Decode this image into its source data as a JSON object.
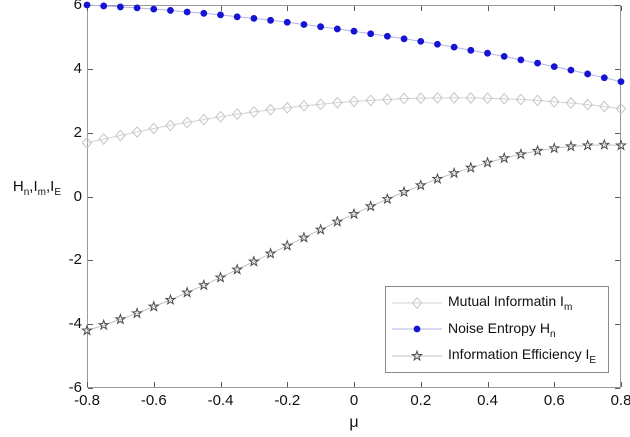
{
  "figure": {
    "background": "#ffffff"
  },
  "chart_data": {
    "type": "line",
    "title": "",
    "xlabel": "μ",
    "ylabel": "Hn,Im,IE",
    "ylabel_parts": [
      {
        "t": "H",
        "sub": "n"
      },
      {
        "t": ",I",
        "sub": "m"
      },
      {
        "t": ",I",
        "sub": "E"
      }
    ],
    "xlim": [
      -0.8,
      0.8
    ],
    "ylim": [
      -6,
      6
    ],
    "grid": false,
    "legend_position": "lower right",
    "x_tick_labels": [
      "-0.8",
      "-0.6",
      "-0.4",
      "-0.2",
      "0",
      "0.2",
      "0.4",
      "0.6",
      "0.8"
    ],
    "x_tick_values": [
      -0.8,
      -0.6,
      -0.4,
      -0.2,
      0,
      0.2,
      0.4,
      0.6,
      0.8
    ],
    "y_tick_labels": [
      "-6",
      "-4",
      "-2",
      "0",
      "2",
      "4",
      "6"
    ],
    "y_tick_values": [
      -6,
      -4,
      -2,
      0,
      2,
      4,
      6
    ],
    "colors": {
      "axis_box": "#9a9a9a",
      "tick": "#5a5a5a",
      "text": "#111111"
    },
    "x": [
      -0.8,
      -0.75,
      -0.7,
      -0.65,
      -0.6,
      -0.55,
      -0.5,
      -0.45,
      -0.4,
      -0.35,
      -0.3,
      -0.25,
      -0.2,
      -0.15,
      -0.1,
      -0.05,
      0,
      0.05,
      0.1,
      0.15,
      0.2,
      0.25,
      0.3,
      0.35,
      0.4,
      0.45,
      0.5,
      0.55,
      0.6,
      0.65,
      0.7,
      0.75,
      0.8
    ],
    "series": [
      {
        "name": "Mutual Informatin Im",
        "legend_text": "Mutual Informatin I",
        "legend_sub": "m",
        "marker": "diamond",
        "marker_color": "#c6c6c6",
        "line_color": "#d2d2d2",
        "values": [
          1.68,
          1.8,
          1.91,
          2.02,
          2.13,
          2.23,
          2.32,
          2.41,
          2.5,
          2.58,
          2.65,
          2.72,
          2.78,
          2.84,
          2.89,
          2.94,
          2.98,
          3.01,
          3.04,
          3.07,
          3.08,
          3.09,
          3.09,
          3.09,
          3.08,
          3.06,
          3.04,
          3.01,
          2.97,
          2.93,
          2.88,
          2.82,
          2.75
        ]
      },
      {
        "name": "Noise Entropy Hn",
        "legend_text": "Noise Entropy H",
        "legend_sub": "n",
        "marker": "dot",
        "marker_color": "#1414d2",
        "line_color": "#b4b4ea",
        "values": [
          6.0,
          5.97,
          5.94,
          5.91,
          5.87,
          5.83,
          5.78,
          5.74,
          5.69,
          5.63,
          5.58,
          5.52,
          5.46,
          5.39,
          5.32,
          5.25,
          5.18,
          5.1,
          5.02,
          4.94,
          4.86,
          4.77,
          4.68,
          4.58,
          4.49,
          4.39,
          4.28,
          4.18,
          4.07,
          3.96,
          3.84,
          3.72,
          3.6
        ]
      },
      {
        "name": "Information Efficiency IE",
        "legend_text": "Information Efficiency I",
        "legend_sub": "E",
        "marker": "star",
        "marker_color": "#4a4a4a",
        "line_color": "#c0c0c0",
        "values": [
          -4.2,
          -4.03,
          -3.85,
          -3.66,
          -3.45,
          -3.24,
          -3.01,
          -2.78,
          -2.54,
          -2.29,
          -2.04,
          -1.79,
          -1.54,
          -1.29,
          -1.04,
          -0.79,
          -0.55,
          -0.31,
          -0.08,
          0.14,
          0.35,
          0.55,
          0.73,
          0.9,
          1.06,
          1.2,
          1.32,
          1.43,
          1.51,
          1.57,
          1.6,
          1.62,
          1.6
        ]
      }
    ]
  }
}
